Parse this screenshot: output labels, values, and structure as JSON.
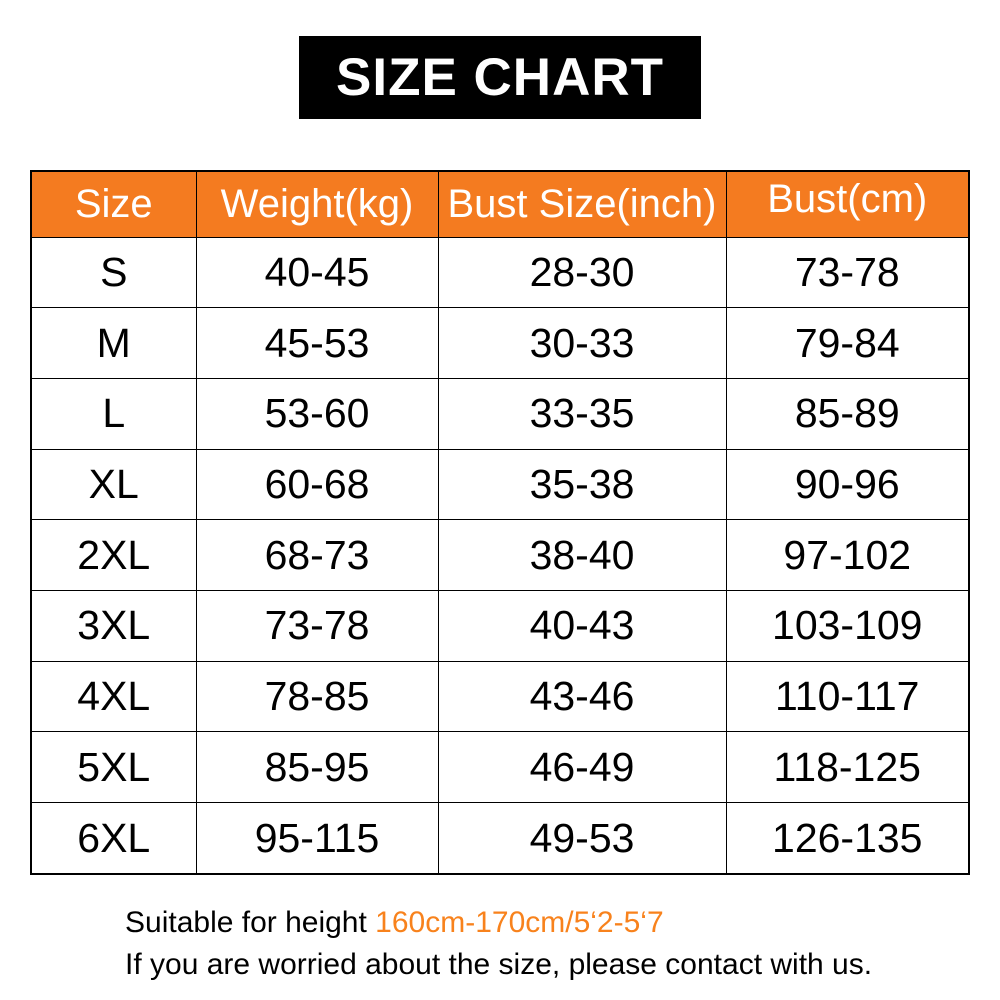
{
  "colors": {
    "banner_bg": "#000000",
    "banner_fg": "#ffffff",
    "header_bg": "#F47B20",
    "header_fg": "#ffffff",
    "highlight": "#F8821C"
  },
  "title": {
    "text": "SIZE CHART"
  },
  "table": {
    "columns": [
      "Size",
      "Weight(kg)",
      "Bust Size(inch)",
      "Bust(cm)"
    ],
    "rows": [
      [
        "S",
        "40-45",
        "28-30",
        "73-78"
      ],
      [
        "M",
        "45-53",
        "30-33",
        "79-84"
      ],
      [
        "L",
        "53-60",
        "33-35",
        "85-89"
      ],
      [
        "XL",
        "60-68",
        "35-38",
        "90-96"
      ],
      [
        "2XL",
        "68-73",
        "38-40",
        "97-102"
      ],
      [
        "3XL",
        "73-78",
        "40-43",
        "103-109"
      ],
      [
        "4XL",
        "78-85",
        "43-46",
        "110-117"
      ],
      [
        "5XL",
        "85-95",
        "46-49",
        "118-125"
      ],
      [
        "6XL",
        "95-115",
        "49-53",
        "126-135"
      ]
    ]
  },
  "footer": {
    "line1_prefix": "Suitable for height ",
    "line1_highlight": "160cm-170cm/5‘2-5‘7",
    "line2": "If you are worried about the size, please contact with us."
  }
}
